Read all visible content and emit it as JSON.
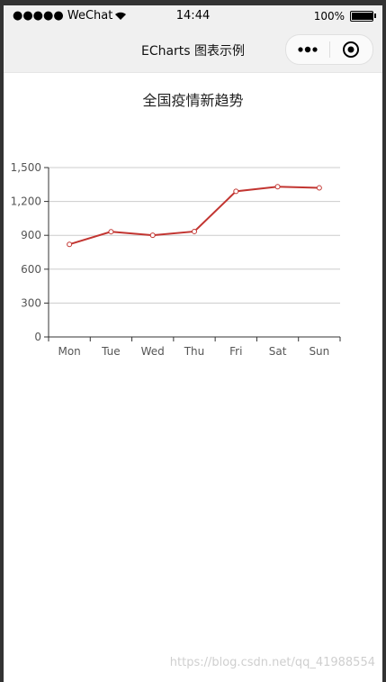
{
  "status_bar": {
    "carrier": "●●●●● WeChat",
    "time": "14:44",
    "battery_text": "100%",
    "battery_level": 1.0,
    "wifi_icon": "wifi-icon",
    "battery_icon": "battery-icon"
  },
  "nav_bar": {
    "title": "ECharts 图表示例",
    "more_icon": "more-dots-icon",
    "close_icon": "record-circle-icon"
  },
  "chart_data": {
    "type": "line",
    "title": "全国疫情新趋势",
    "categories": [
      "Mon",
      "Tue",
      "Wed",
      "Thu",
      "Fri",
      "Sat",
      "Sun"
    ],
    "series": [
      {
        "values": [
          820,
          932,
          901,
          934,
          1290,
          1330,
          1320
        ],
        "color": "#c23531"
      }
    ],
    "ylim": [
      0,
      1500
    ],
    "yticks": [
      "0",
      "300",
      "600",
      "900",
      "1,200",
      "1,500"
    ],
    "ytick_values": [
      0,
      300,
      600,
      900,
      1200,
      1500
    ],
    "grid": true
  },
  "watermark": "https://blog.csdn.net/qq_41988554"
}
